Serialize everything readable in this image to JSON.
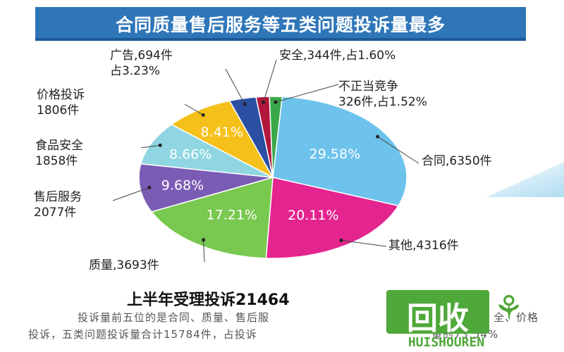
{
  "title": "合同质量售后服务等五类问题投诉量最多",
  "chart_data": {
    "type": "pie",
    "slices": [
      {
        "label": "合同",
        "count": 6350,
        "percent": 29.58,
        "color": "#6dc3ec",
        "text": "合同,6350件"
      },
      {
        "label": "其他",
        "count": 4316,
        "percent": 20.11,
        "color": "#e4248f",
        "text": "其他,4316件"
      },
      {
        "label": "质量",
        "count": 3693,
        "percent": 17.21,
        "color": "#79c84f",
        "text": "质量,3693件"
      },
      {
        "label": "售后服务",
        "count": 2077,
        "percent": 9.68,
        "color": "#7b5cb5",
        "text": "售后服务\n2077件"
      },
      {
        "label": "食品安全",
        "count": 1858,
        "percent": 8.66,
        "color": "#8fd6e2",
        "text": "食品安全\n1858件"
      },
      {
        "label": "价格投诉",
        "count": 1806,
        "percent": 8.41,
        "color": "#f5c01a",
        "text": "价格投诉\n1806件"
      },
      {
        "label": "广告",
        "count": 694,
        "percent": 3.23,
        "color": "#2a4fa3",
        "text": "广告,694件\n占3.23%"
      },
      {
        "label": "安全",
        "count": 344,
        "percent": 1.6,
        "color": "#b0173b",
        "text": "安全,344件,占1.60%"
      },
      {
        "label": "不正当竞争",
        "count": 326,
        "percent": 1.52,
        "color": "#3aa84a",
        "text": "不正当竞争\n326件,占1.52%"
      }
    ],
    "inner_labels": [
      "29.58%",
      "20.11%",
      "17.21%",
      "9.68%",
      "8.66%",
      "8.41%"
    ],
    "subtitle": "上半年受理投诉21464",
    "notes": [
      "投诉量前五位的是合同、质量、售后服",
      "投诉，五类问题投诉量合计15784件，占投诉"
    ],
    "notes_tail": [
      "全、价格",
      "量的73.54%"
    ]
  },
  "watermark": {
    "main": "回收",
    "sub": "HUISHOUREN",
    "leaf": "⚘"
  }
}
